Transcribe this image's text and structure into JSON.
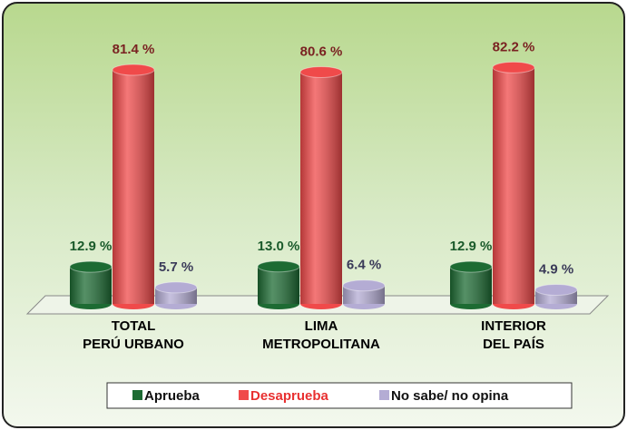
{
  "chart_data": {
    "type": "bar",
    "categories": [
      "TOTAL\nPERÚ URBANO",
      "LIMA\nMETROPOLITANA",
      "INTERIOR\nDEL PAÍS"
    ],
    "series": [
      {
        "name": "Aprueba",
        "color": "#1d6b33",
        "values": [
          12.9,
          13.0,
          12.9
        ],
        "value_labels": [
          "12.9 %",
          "13.0 %",
          "12.9 %"
        ]
      },
      {
        "name": "Desaprueba",
        "color": "#f04a4a",
        "values": [
          81.4,
          80.6,
          82.2
        ],
        "value_labels": [
          "81.4 %",
          "80.6 %",
          "82.2 %"
        ]
      },
      {
        "name": "No sabe/ no opina",
        "color": "#b4acd4",
        "values": [
          5.7,
          6.4,
          4.9
        ],
        "value_labels": [
          "5.7 %",
          "6.4 %",
          "4.9 %"
        ]
      }
    ]
  }
}
